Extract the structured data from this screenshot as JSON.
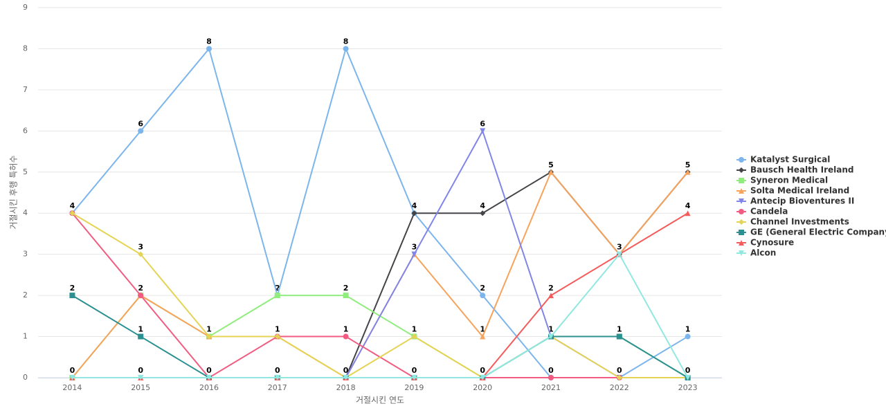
{
  "chart_data": {
    "type": "line",
    "x_label": "거절시킨 연도",
    "y_label": "거절시킨 후행 특허수",
    "categories": [
      "2014",
      "2015",
      "2016",
      "2017",
      "2018",
      "2019",
      "2020",
      "2021",
      "2022",
      "2023"
    ],
    "ylim": [
      0,
      9
    ],
    "yticks": [
      0,
      1,
      2,
      3,
      4,
      5,
      6,
      7,
      8,
      9
    ],
    "grid": true,
    "legend": "right",
    "data_labels": true,
    "series": [
      {
        "name": "Katalyst Surgical",
        "color": "#7cb5ec",
        "values": [
          4,
          6,
          8,
          2,
          8,
          4,
          2,
          0,
          0,
          1
        ]
      },
      {
        "name": "Bausch Health Ireland",
        "color": "#434348",
        "values": [
          0,
          0,
          0,
          0,
          0,
          4,
          4,
          5,
          3,
          5
        ]
      },
      {
        "name": "Syneron Medical",
        "color": "#90ed7d",
        "values": [
          0,
          2,
          1,
          2,
          2,
          1,
          0,
          1,
          1,
          0
        ]
      },
      {
        "name": "Solta Medical Ireland",
        "color": "#f7a35c",
        "values": [
          0,
          2,
          1,
          1,
          0,
          3,
          1,
          5,
          3,
          5
        ]
      },
      {
        "name": "Antecip Bioventures II",
        "color": "#8085e9",
        "values": [
          0,
          0,
          0,
          0,
          0,
          3,
          6,
          1,
          0,
          0
        ]
      },
      {
        "name": "Candela",
        "color": "#f15c80",
        "values": [
          4,
          2,
          0,
          1,
          1,
          0,
          0,
          0,
          0,
          0
        ]
      },
      {
        "name": "Channel Investments",
        "color": "#e4d354",
        "values": [
          4,
          3,
          1,
          1,
          0,
          1,
          0,
          1,
          0,
          0
        ]
      },
      {
        "name": "GE (General Electric Company)",
        "color": "#2b908f",
        "values": [
          2,
          1,
          0,
          0,
          0,
          0,
          0,
          1,
          1,
          0
        ]
      },
      {
        "name": "Cynosure",
        "color": "#f45b5b",
        "values": [
          0,
          0,
          0,
          0,
          0,
          0,
          0,
          2,
          3,
          4
        ]
      },
      {
        "name": "Alcon",
        "color": "#91e8e1",
        "values": [
          0,
          0,
          0,
          0,
          0,
          0,
          0,
          1,
          3,
          0
        ]
      }
    ]
  }
}
